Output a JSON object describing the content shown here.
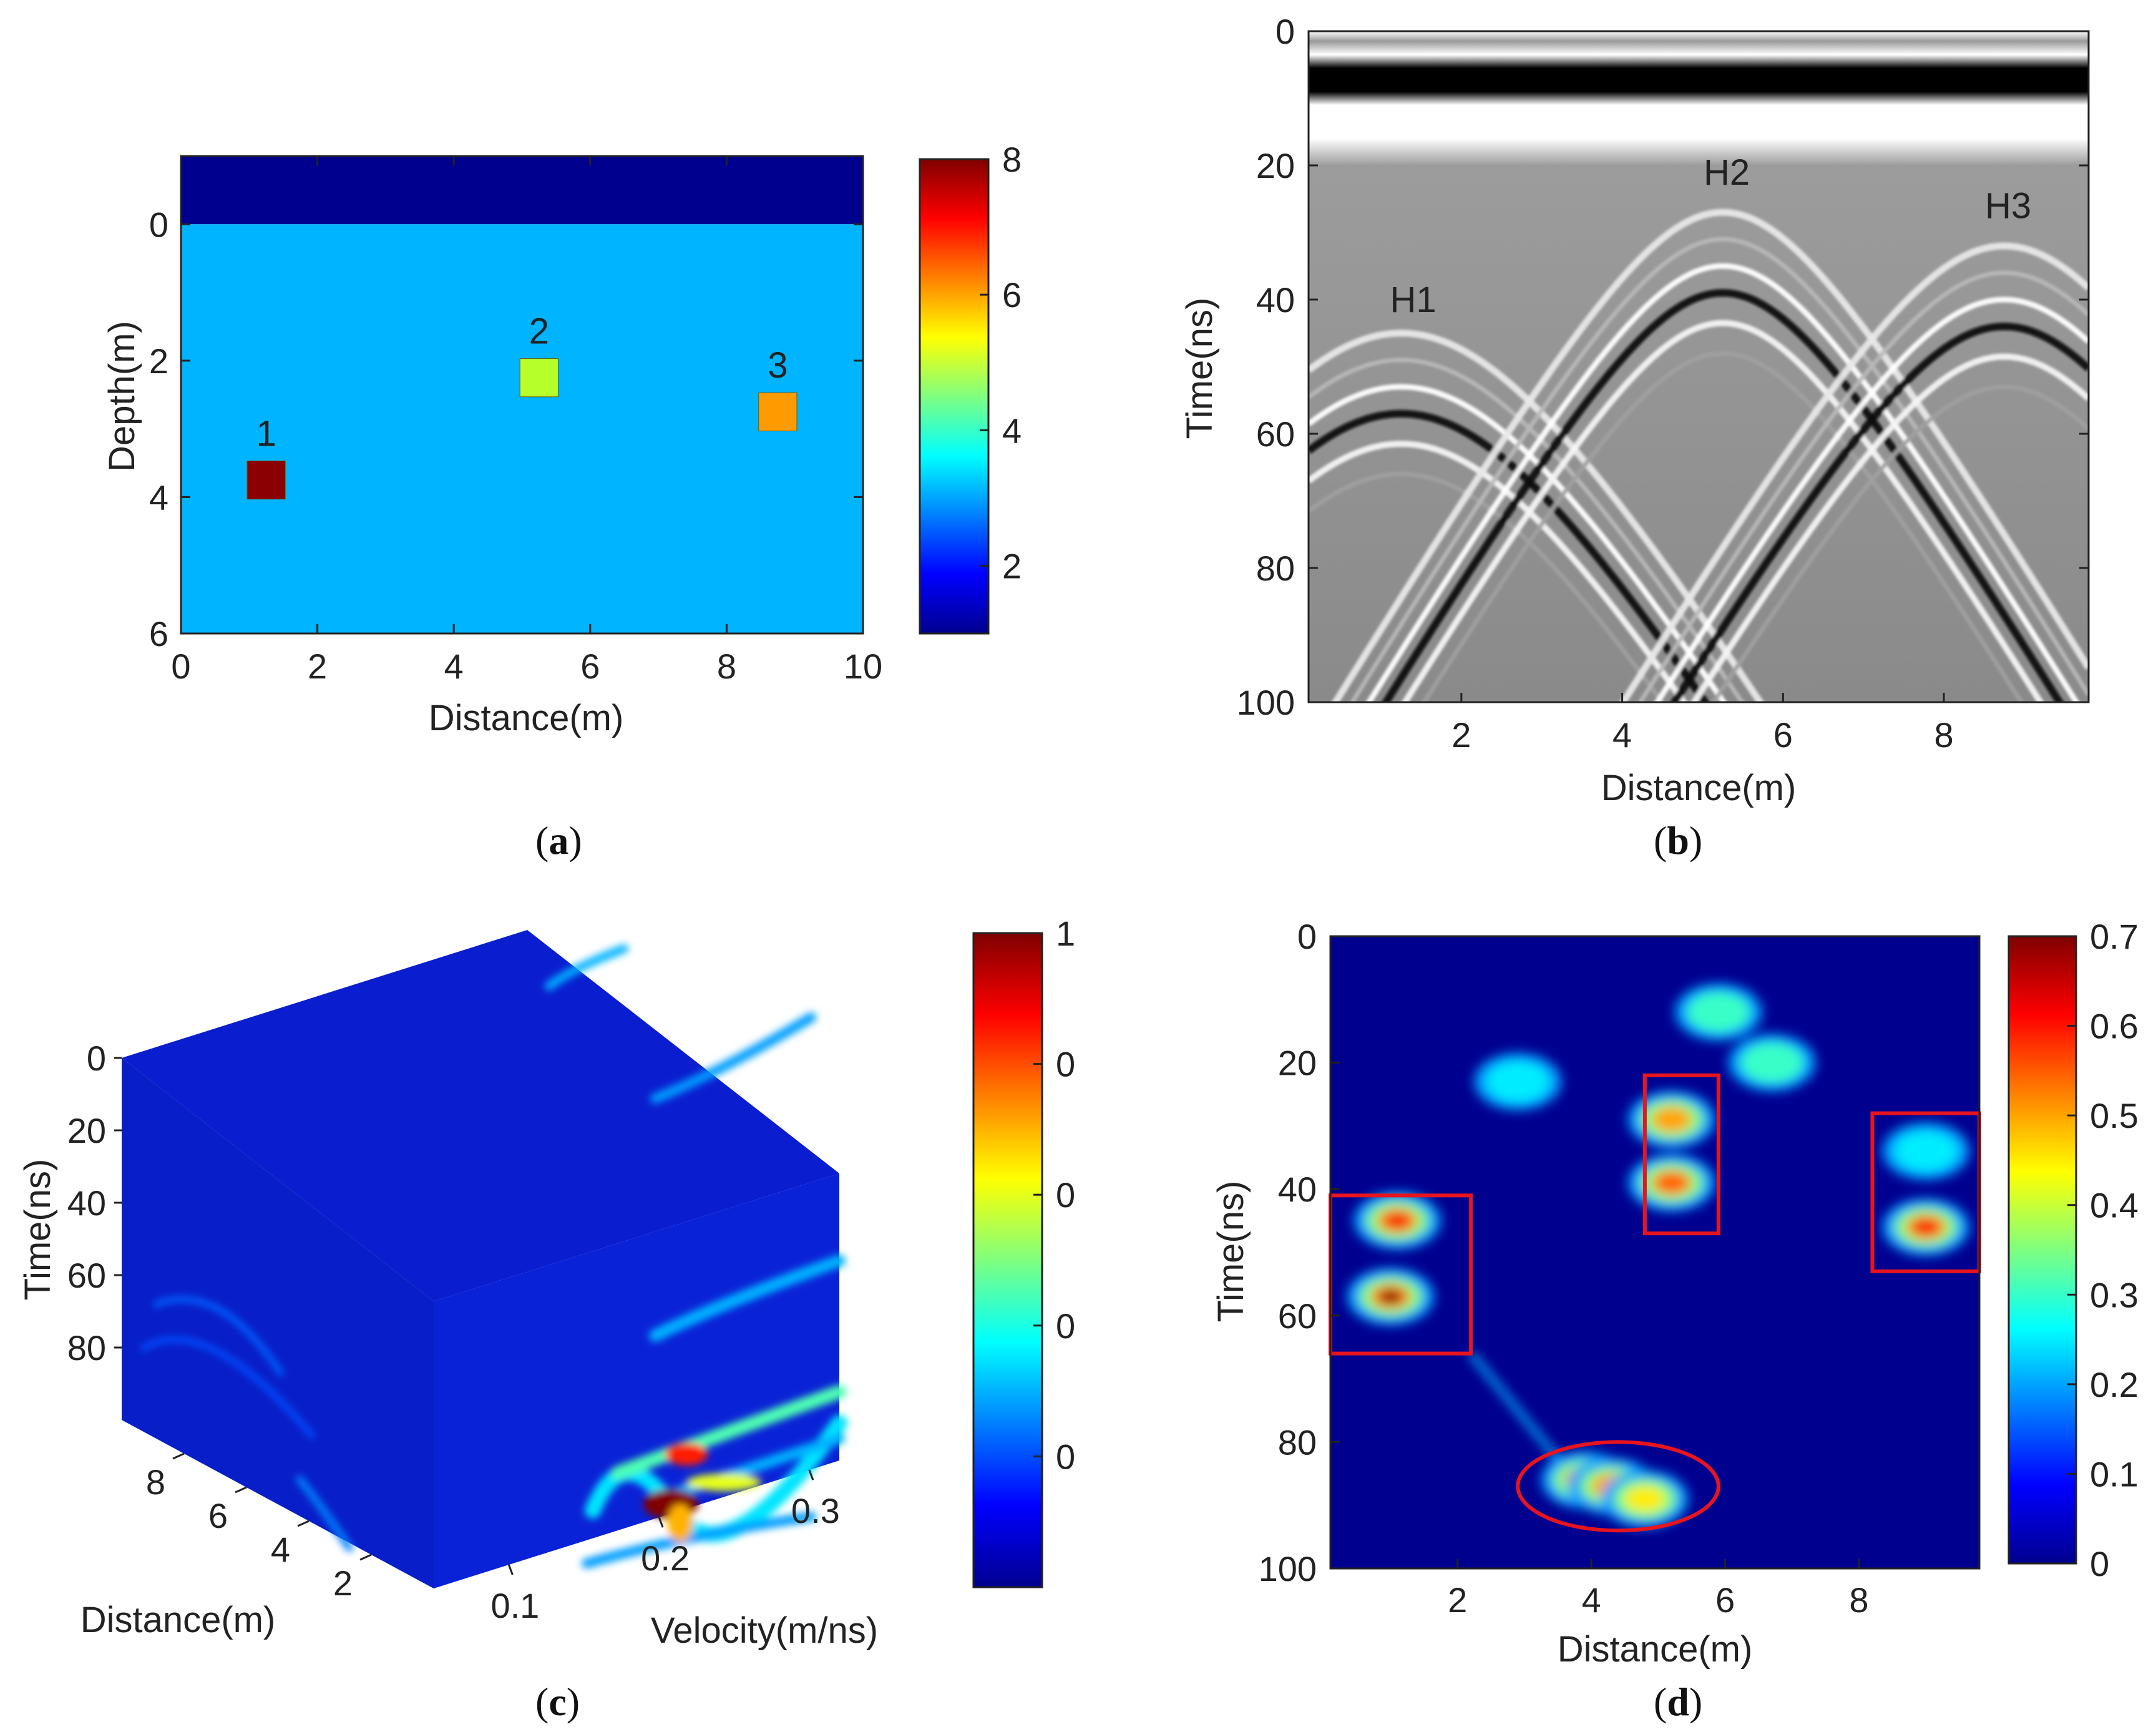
{
  "captions": {
    "a": "a",
    "b": "b",
    "c": "c",
    "d": "d"
  },
  "chart_data": [
    {
      "id": "a",
      "type": "heatmap",
      "title": "",
      "xlabel": "Distance(m)",
      "ylabel": "Depth(m)",
      "xlim": [
        0,
        10
      ],
      "ylim": [
        -1,
        6
      ],
      "xticks": [
        "0",
        "2",
        "4",
        "6",
        "8",
        "10"
      ],
      "yticks": [
        "0",
        "2",
        "4",
        "6"
      ],
      "colorbar": {
        "range": [
          1,
          8
        ],
        "ticks": [
          "2",
          "4",
          "6",
          "8"
        ]
      },
      "background_layers": [
        {
          "name": "air",
          "depth_range": [
            -1,
            0
          ],
          "value": 1
        },
        {
          "name": "ground",
          "depth_range": [
            0,
            6
          ],
          "value": 3.5
        }
      ],
      "targets": [
        {
          "label": "1",
          "x": 1.25,
          "depth": 3.75,
          "value": 8,
          "color": "#8b0000"
        },
        {
          "label": "2",
          "x": 5.25,
          "depth": 2.25,
          "value": 5,
          "color": "#b6ff2a"
        },
        {
          "label": "3",
          "x": 8.75,
          "depth": 2.75,
          "value": 6.5,
          "color": "#ff9a00"
        }
      ]
    },
    {
      "id": "b",
      "type": "heatmap",
      "title": "",
      "xlabel": "Distance(m)",
      "ylabel": "Time(ns)",
      "xlim": [
        0.1,
        9.8
      ],
      "ylim": [
        0,
        100
      ],
      "xticks": [
        "2",
        "4",
        "6",
        "8"
      ],
      "yticks": [
        "0",
        "20",
        "40",
        "60",
        "80",
        "100"
      ],
      "colormap": "gray",
      "hyperbolas": [
        {
          "label": "H1",
          "apex_x": 1.25,
          "apex_t": 45
        },
        {
          "label": "H2",
          "apex_x": 5.25,
          "apex_t": 27
        },
        {
          "label": "H3",
          "apex_x": 8.75,
          "apex_t": 32
        }
      ]
    },
    {
      "id": "c",
      "type": "heatmap",
      "title": "",
      "xlabel": "Distance(m)",
      "ylabel": "Time(ns)",
      "zlabel": "Velocity(m/ns)",
      "time_ticks": [
        "0",
        "20",
        "40",
        "60",
        "80"
      ],
      "distance_ticks": [
        "8",
        "6",
        "4",
        "2"
      ],
      "velocity_ticks": [
        "0.1",
        "0.2",
        "0.3"
      ],
      "colorbar": {
        "range": [
          0,
          1
        ],
        "ticks": [
          "0.2",
          "0.4",
          "0.6",
          "0.8",
          "1"
        ]
      }
    },
    {
      "id": "d",
      "type": "heatmap",
      "title": "",
      "xlabel": "Distance(m)",
      "ylabel": "Time(ns)",
      "xlim": [
        0.1,
        9.8
      ],
      "ylim": [
        0,
        100
      ],
      "xticks": [
        "2",
        "4",
        "6",
        "8"
      ],
      "yticks": [
        "0",
        "20",
        "40",
        "60",
        "80",
        "100"
      ],
      "colorbar": {
        "range": [
          0,
          0.7
        ],
        "ticks": [
          "0",
          "0.1",
          "0.2",
          "0.3",
          "0.4",
          "0.5",
          "0.6",
          "0.7"
        ]
      },
      "hotspots": [
        {
          "x": 1.1,
          "t": 45,
          "value": 0.62
        },
        {
          "x": 1.0,
          "t": 57,
          "value": 0.7
        },
        {
          "x": 5.2,
          "t": 29,
          "value": 0.5
        },
        {
          "x": 5.2,
          "t": 39,
          "value": 0.55
        },
        {
          "x": 9.0,
          "t": 34,
          "value": 0.25
        },
        {
          "x": 9.0,
          "t": 46,
          "value": 0.62
        },
        {
          "x": 3.9,
          "t": 86,
          "value": 0.6
        },
        {
          "x": 4.3,
          "t": 87,
          "value": 0.5
        },
        {
          "x": 4.8,
          "t": 89,
          "value": 0.45
        },
        {
          "x": 5.9,
          "t": 12,
          "value": 0.3
        },
        {
          "x": 2.9,
          "t": 23,
          "value": 0.25
        },
        {
          "x": 6.7,
          "t": 20,
          "value": 0.3
        }
      ],
      "rect_highlights": [
        {
          "x0": 0.1,
          "x1": 2.2,
          "t0": 41,
          "t1": 66
        },
        {
          "x0": 4.8,
          "x1": 5.9,
          "t0": 22,
          "t1": 47
        },
        {
          "x0": 8.2,
          "x1": 9.8,
          "t0": 28,
          "t1": 53
        }
      ],
      "ellipse_highlight": {
        "cx": 4.4,
        "ct": 87,
        "rx": 1.5,
        "rt": 7
      }
    }
  ]
}
